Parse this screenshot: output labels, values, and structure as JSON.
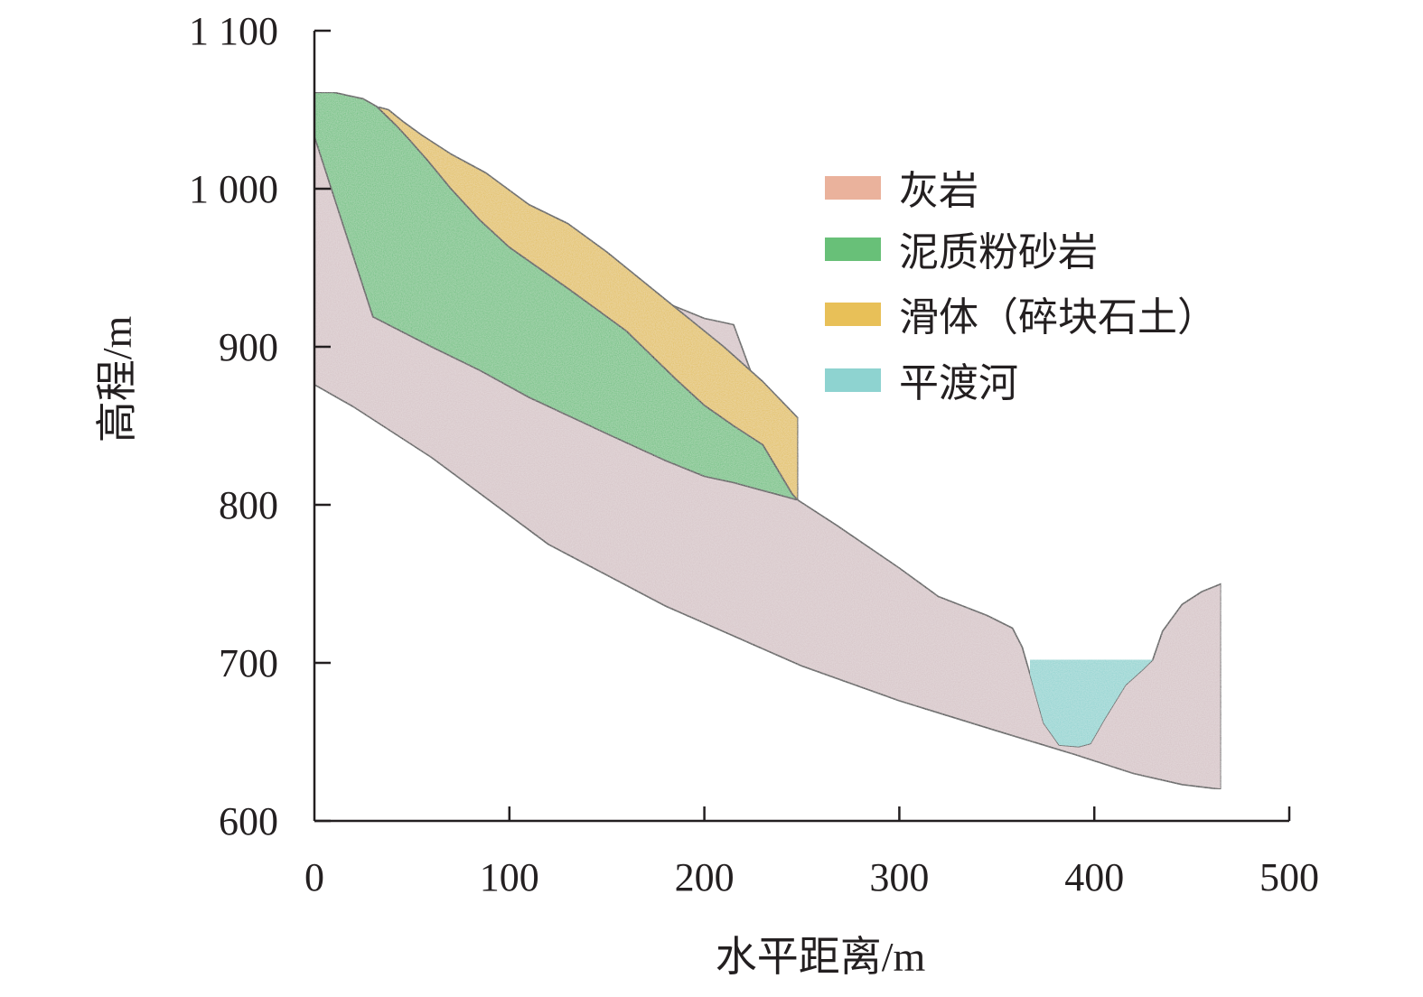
{
  "chart_data": {
    "type": "geological-cross-section",
    "xlabel": "水平距离/m",
    "ylabel": "高程/m",
    "xlim": [
      0,
      500
    ],
    "ylim": [
      600,
      1100
    ],
    "x_ticks": [
      0,
      100,
      200,
      300,
      400,
      500
    ],
    "x_tick_labels": [
      "0",
      "100",
      "200",
      "300",
      "400",
      "500"
    ],
    "y_ticks": [
      600,
      700,
      800,
      900,
      1000,
      1100
    ],
    "y_tick_labels": [
      "600",
      "700",
      "800",
      "900",
      "1 000",
      "1 100"
    ],
    "legend": [
      {
        "key": "limestone",
        "label": "灰岩",
        "color": "#eab29c"
      },
      {
        "key": "mudstone",
        "label": "泥质粉砂岩",
        "color": "#68c078"
      },
      {
        "key": "slide",
        "label": "滑体（碎块石土）",
        "color": "#e8c058"
      },
      {
        "key": "river",
        "label": "平渡河",
        "color": "#8ed3d0"
      }
    ],
    "layers": [
      {
        "key": "limestone",
        "fill": "#d5c3c6",
        "points": [
          [
            0,
            1033
          ],
          [
            30,
            1019
          ],
          [
            60,
            1000
          ],
          [
            85,
            985
          ],
          [
            110,
            968
          ],
          [
            150,
            945
          ],
          [
            180,
            928
          ],
          [
            200,
            918
          ],
          [
            215,
            914
          ],
          [
            248,
            803
          ],
          [
            268,
            787
          ],
          [
            300,
            760
          ],
          [
            320,
            742
          ],
          [
            345,
            730
          ],
          [
            358,
            722
          ],
          [
            363,
            710
          ],
          [
            367,
            693
          ],
          [
            374,
            662
          ],
          [
            382,
            648
          ],
          [
            392,
            647
          ],
          [
            398,
            649
          ],
          [
            405,
            664
          ],
          [
            416,
            686
          ],
          [
            425,
            696
          ],
          [
            430,
            702
          ],
          [
            435,
            720
          ],
          [
            445,
            737
          ],
          [
            455,
            745
          ],
          [
            465,
            750
          ],
          [
            465,
            620
          ],
          [
            445,
            623
          ],
          [
            420,
            630
          ],
          [
            390,
            642
          ],
          [
            350,
            657
          ],
          [
            300,
            676
          ],
          [
            250,
            698
          ],
          [
            180,
            736
          ],
          [
            120,
            775
          ],
          [
            60,
            830
          ],
          [
            20,
            862
          ],
          [
            0,
            876
          ]
        ]
      },
      {
        "key": "mudstone",
        "fill": "#6cc07e",
        "points": [
          [
            0,
            1061
          ],
          [
            10,
            1061
          ],
          [
            25,
            1057
          ],
          [
            32,
            1052
          ],
          [
            37,
            1046
          ],
          [
            42,
            1040
          ],
          [
            48,
            1032
          ],
          [
            58,
            1018
          ],
          [
            70,
            1000
          ],
          [
            85,
            980
          ],
          [
            100,
            963
          ],
          [
            130,
            937
          ],
          [
            160,
            910
          ],
          [
            185,
            880
          ],
          [
            200,
            863
          ],
          [
            215,
            850
          ],
          [
            230,
            838
          ],
          [
            245,
            807
          ],
          [
            248,
            803
          ],
          [
            215,
            814
          ],
          [
            200,
            818
          ],
          [
            180,
            828
          ],
          [
            150,
            845
          ],
          [
            110,
            868
          ],
          [
            85,
            885
          ],
          [
            60,
            900
          ],
          [
            30,
            919
          ],
          [
            0,
            1033
          ]
        ]
      },
      {
        "key": "slide",
        "fill": "#e2bf58",
        "points": [
          [
            32,
            1052
          ],
          [
            38,
            1050
          ],
          [
            45,
            1043
          ],
          [
            55,
            1034
          ],
          [
            70,
            1022
          ],
          [
            88,
            1010
          ],
          [
            110,
            990
          ],
          [
            130,
            978
          ],
          [
            150,
            960
          ],
          [
            175,
            935
          ],
          [
            210,
            900
          ],
          [
            230,
            878
          ],
          [
            248,
            855
          ],
          [
            248,
            803
          ],
          [
            245,
            807
          ],
          [
            230,
            838
          ],
          [
            215,
            850
          ],
          [
            200,
            863
          ],
          [
            185,
            880
          ],
          [
            160,
            910
          ],
          [
            130,
            937
          ],
          [
            100,
            963
          ],
          [
            85,
            980
          ],
          [
            70,
            1000
          ],
          [
            58,
            1018
          ],
          [
            48,
            1032
          ],
          [
            42,
            1040
          ],
          [
            37,
            1046
          ]
        ]
      },
      {
        "key": "river",
        "fill": "#8ed3d0",
        "points": [
          [
            367,
            702
          ],
          [
            430,
            702
          ],
          [
            425,
            696
          ],
          [
            416,
            686
          ],
          [
            405,
            664
          ],
          [
            398,
            649
          ],
          [
            392,
            647
          ],
          [
            382,
            648
          ],
          [
            374,
            662
          ],
          [
            367,
            693
          ]
        ]
      }
    ]
  }
}
